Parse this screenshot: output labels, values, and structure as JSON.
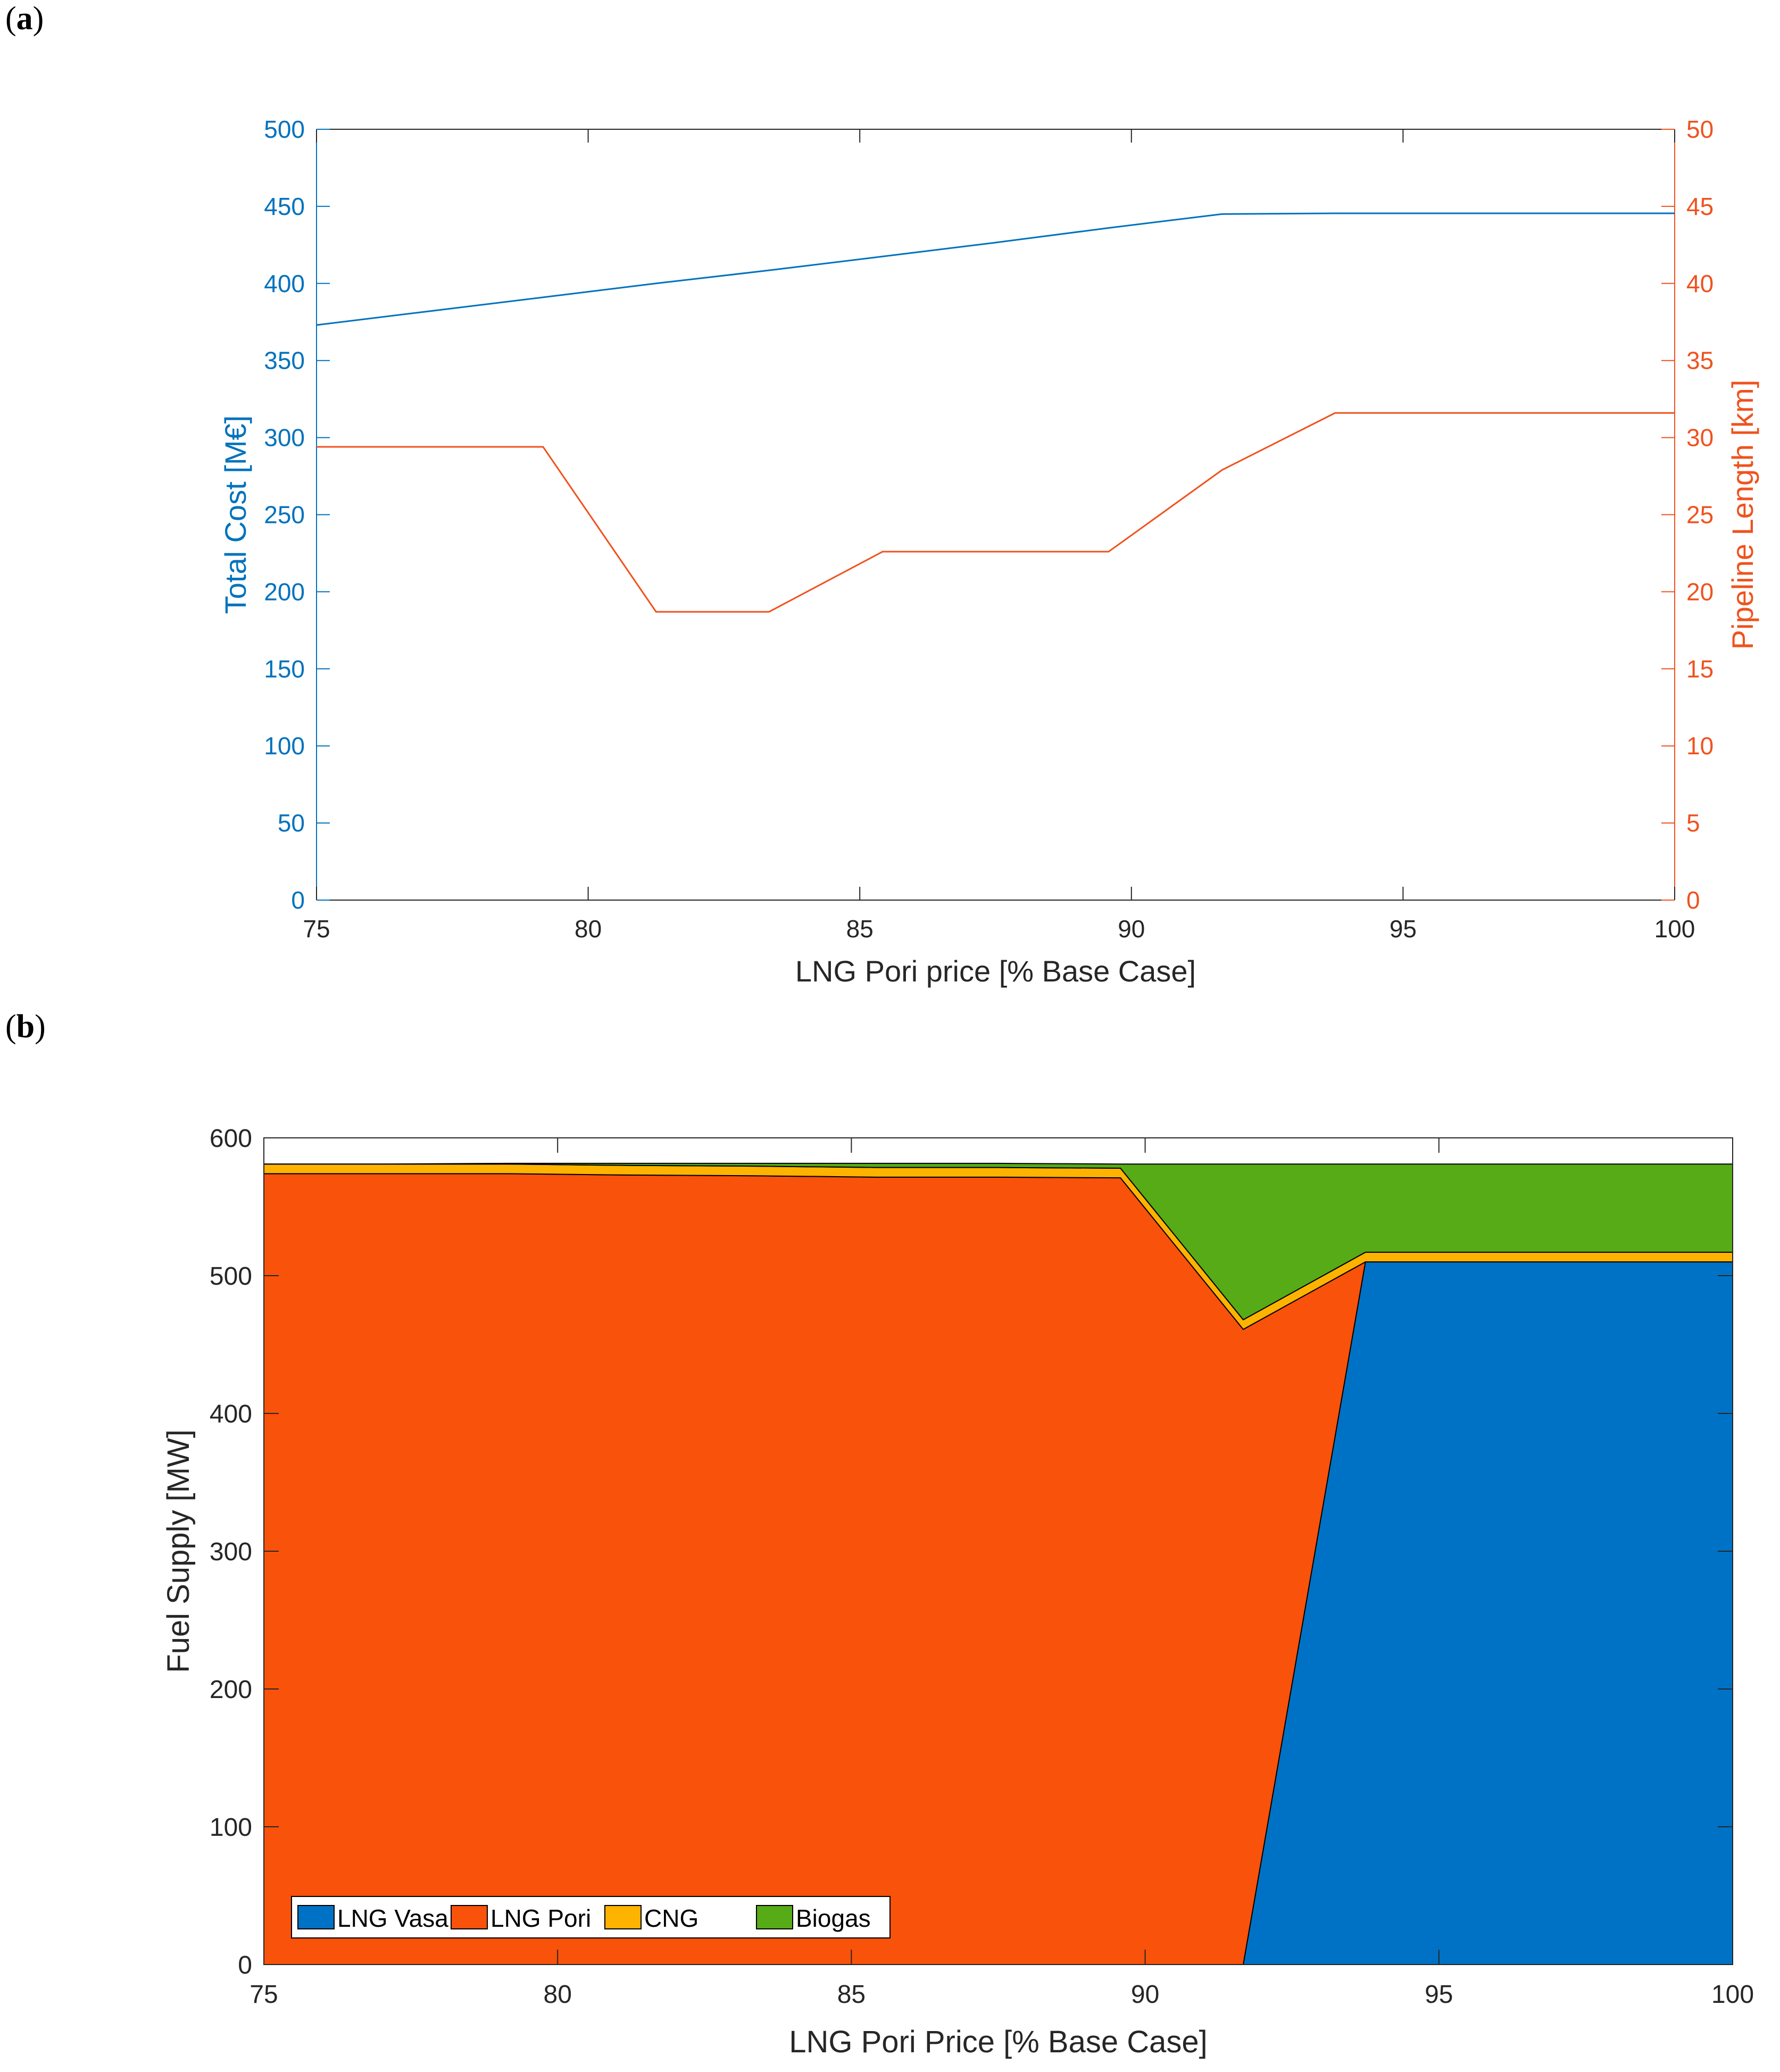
{
  "panel_a_label": {
    "open": "(",
    "letter": "a",
    "close": ")"
  },
  "panel_b_label": {
    "open": "(",
    "letter": "b",
    "close": ")"
  },
  "colors": {
    "cost": "#0072BD",
    "pipeline": "#F0521E",
    "lng_vasa": "#0072C6",
    "lng_pori": "#F8520B",
    "cng": "#FDB300",
    "biogas": "#56AB17",
    "axis": "#262626"
  },
  "chart_data": [
    {
      "id": "a",
      "type": "line",
      "title": "",
      "xlabel": "LNG Pori price [% Base Case]",
      "ylabel": "Total Cost [M€]",
      "ylabel_right": "Pipeline Length [km]",
      "xlim": [
        75,
        100
      ],
      "ylim": [
        0,
        500
      ],
      "ylim_right": [
        0,
        50
      ],
      "xticks": [
        75,
        80,
        85,
        90,
        95,
        100
      ],
      "yticks": [
        0,
        50,
        100,
        150,
        200,
        250,
        300,
        350,
        400,
        450,
        500
      ],
      "yticks_right": [
        0,
        5,
        10,
        15,
        20,
        25,
        30,
        35,
        40,
        45,
        50
      ],
      "x": [
        75,
        77.08,
        79.17,
        81.25,
        83.33,
        85.42,
        87.5,
        89.58,
        91.67,
        93.75,
        95.83,
        97.92,
        100
      ],
      "series": [
        {
          "name": "Total Cost",
          "axis": "left",
          "values": [
            373,
            382,
            391,
            400,
            408.5,
            417.5,
            426.5,
            436,
            445,
            445.5,
            445.5,
            445.5,
            445.5
          ]
        },
        {
          "name": "Pipeline Length",
          "axis": "right",
          "values": [
            29.4,
            29.4,
            29.4,
            18.7,
            18.7,
            22.6,
            22.6,
            22.6,
            27.9,
            31.6,
            31.6,
            31.6,
            31.6
          ]
        }
      ]
    },
    {
      "id": "b",
      "type": "area",
      "title": "",
      "xlabel": "LNG Pori Price [% Base Case]",
      "ylabel": "Fuel Supply [MW]",
      "xlim": [
        75,
        100
      ],
      "ylim": [
        0,
        600
      ],
      "xticks": [
        75,
        80,
        85,
        90,
        95,
        100
      ],
      "yticks": [
        0,
        100,
        200,
        300,
        400,
        500,
        600
      ],
      "legend_position": "bottom-left",
      "x": [
        75,
        77.08,
        79.17,
        81.25,
        83.33,
        85.42,
        87.5,
        89.58,
        91.67,
        93.75,
        95.83,
        97.92,
        100
      ],
      "series": [
        {
          "name": "LNG Vasa",
          "values": [
            0,
            0,
            0,
            0,
            0,
            0,
            0,
            0,
            0,
            510,
            510,
            510,
            510
          ]
        },
        {
          "name": "LNG Pori",
          "values": [
            574,
            574,
            574,
            573,
            572.5,
            571.5,
            571.5,
            571,
            461,
            0,
            0,
            0,
            0
          ]
        },
        {
          "name": "CNG",
          "values": [
            7,
            7,
            7,
            7,
            7,
            7,
            7,
            7,
            7,
            7,
            7,
            7,
            7
          ]
        },
        {
          "name": "Biogas",
          "values": [
            0,
            0,
            0.5,
            1.5,
            2,
            3,
            3,
            3,
            113,
            64,
            64,
            64,
            64
          ]
        }
      ]
    }
  ]
}
